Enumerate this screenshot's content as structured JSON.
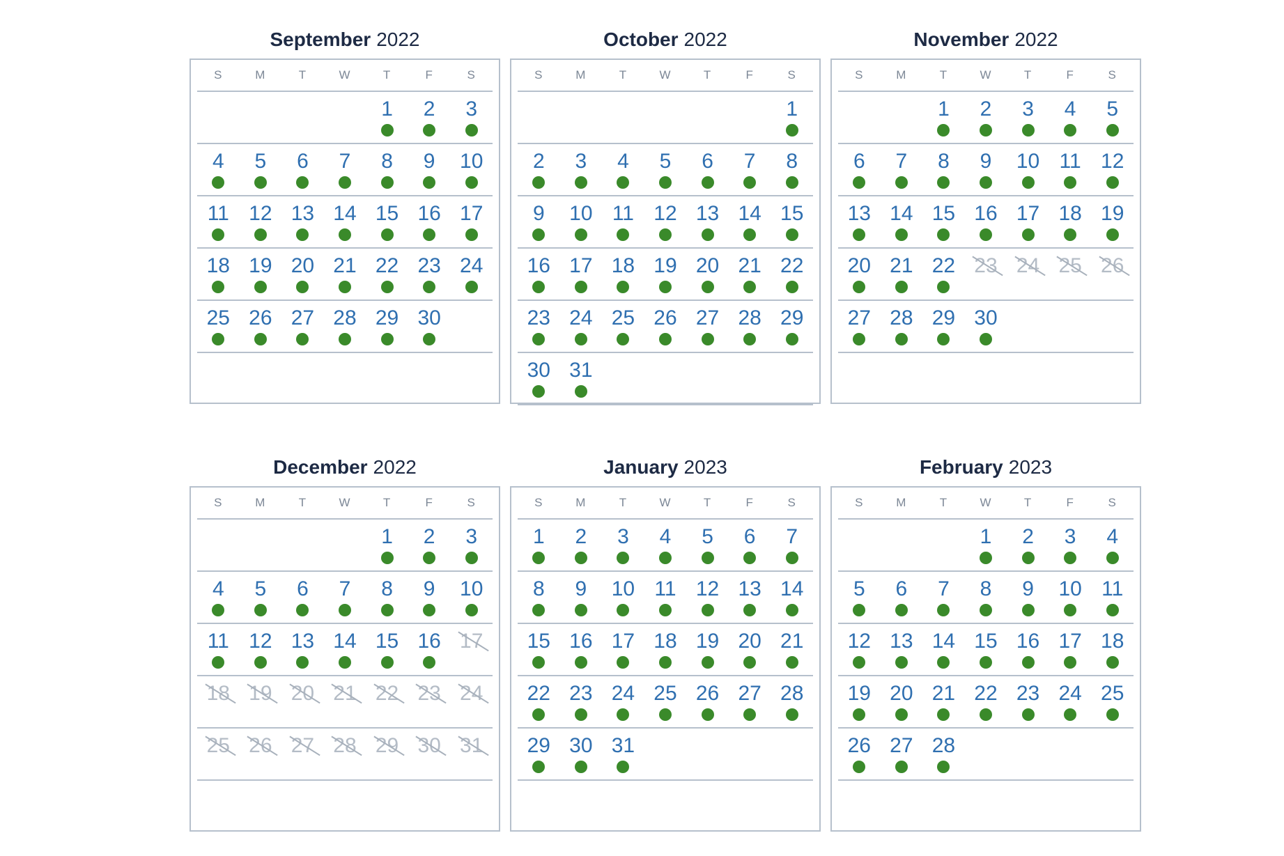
{
  "weekday_labels": [
    "S",
    "M",
    "T",
    "W",
    "T",
    "F",
    "S"
  ],
  "colors": {
    "title": "#1d2a44",
    "day_number": "#2f6fb0",
    "available_dot": "#3a8a2a",
    "unavailable_day": "#b4bcc6",
    "border": "#b6c0cc",
    "weekday_label": "#7c8796"
  },
  "months": [
    {
      "name": "September",
      "year": "2022",
      "weeks": [
        [
          null,
          null,
          null,
          null,
          {
            "d": "1",
            "avail": true
          },
          {
            "d": "2",
            "avail": true
          },
          {
            "d": "3",
            "avail": true
          }
        ],
        [
          {
            "d": "4",
            "avail": true
          },
          {
            "d": "5",
            "avail": true
          },
          {
            "d": "6",
            "avail": true
          },
          {
            "d": "7",
            "avail": true
          },
          {
            "d": "8",
            "avail": true
          },
          {
            "d": "9",
            "avail": true
          },
          {
            "d": "10",
            "avail": true
          }
        ],
        [
          {
            "d": "11",
            "avail": true
          },
          {
            "d": "12",
            "avail": true
          },
          {
            "d": "13",
            "avail": true
          },
          {
            "d": "14",
            "avail": true
          },
          {
            "d": "15",
            "avail": true
          },
          {
            "d": "16",
            "avail": true
          },
          {
            "d": "17",
            "avail": true
          }
        ],
        [
          {
            "d": "18",
            "avail": true
          },
          {
            "d": "19",
            "avail": true
          },
          {
            "d": "20",
            "avail": true
          },
          {
            "d": "21",
            "avail": true
          },
          {
            "d": "22",
            "avail": true
          },
          {
            "d": "23",
            "avail": true
          },
          {
            "d": "24",
            "avail": true
          }
        ],
        [
          {
            "d": "25",
            "avail": true
          },
          {
            "d": "26",
            "avail": true
          },
          {
            "d": "27",
            "avail": true
          },
          {
            "d": "28",
            "avail": true
          },
          {
            "d": "29",
            "avail": true
          },
          {
            "d": "30",
            "avail": true
          },
          null
        ]
      ]
    },
    {
      "name": "October",
      "year": "2022",
      "weeks": [
        [
          null,
          null,
          null,
          null,
          null,
          null,
          {
            "d": "1",
            "avail": true
          }
        ],
        [
          {
            "d": "2",
            "avail": true
          },
          {
            "d": "3",
            "avail": true
          },
          {
            "d": "4",
            "avail": true
          },
          {
            "d": "5",
            "avail": true
          },
          {
            "d": "6",
            "avail": true
          },
          {
            "d": "7",
            "avail": true
          },
          {
            "d": "8",
            "avail": true
          }
        ],
        [
          {
            "d": "9",
            "avail": true
          },
          {
            "d": "10",
            "avail": true
          },
          {
            "d": "11",
            "avail": true
          },
          {
            "d": "12",
            "avail": true
          },
          {
            "d": "13",
            "avail": true
          },
          {
            "d": "14",
            "avail": true
          },
          {
            "d": "15",
            "avail": true
          }
        ],
        [
          {
            "d": "16",
            "avail": true
          },
          {
            "d": "17",
            "avail": true
          },
          {
            "d": "18",
            "avail": true
          },
          {
            "d": "19",
            "avail": true
          },
          {
            "d": "20",
            "avail": true
          },
          {
            "d": "21",
            "avail": true
          },
          {
            "d": "22",
            "avail": true
          }
        ],
        [
          {
            "d": "23",
            "avail": true
          },
          {
            "d": "24",
            "avail": true
          },
          {
            "d": "25",
            "avail": true
          },
          {
            "d": "26",
            "avail": true
          },
          {
            "d": "27",
            "avail": true
          },
          {
            "d": "28",
            "avail": true
          },
          {
            "d": "29",
            "avail": true
          }
        ],
        [
          {
            "d": "30",
            "avail": true
          },
          {
            "d": "31",
            "avail": true
          },
          null,
          null,
          null,
          null,
          null
        ]
      ]
    },
    {
      "name": "November",
      "year": "2022",
      "weeks": [
        [
          null,
          null,
          {
            "d": "1",
            "avail": true
          },
          {
            "d": "2",
            "avail": true
          },
          {
            "d": "3",
            "avail": true
          },
          {
            "d": "4",
            "avail": true
          },
          {
            "d": "5",
            "avail": true
          }
        ],
        [
          {
            "d": "6",
            "avail": true
          },
          {
            "d": "7",
            "avail": true
          },
          {
            "d": "8",
            "avail": true
          },
          {
            "d": "9",
            "avail": true
          },
          {
            "d": "10",
            "avail": true
          },
          {
            "d": "11",
            "avail": true
          },
          {
            "d": "12",
            "avail": true
          }
        ],
        [
          {
            "d": "13",
            "avail": true
          },
          {
            "d": "14",
            "avail": true
          },
          {
            "d": "15",
            "avail": true
          },
          {
            "d": "16",
            "avail": true
          },
          {
            "d": "17",
            "avail": true
          },
          {
            "d": "18",
            "avail": true
          },
          {
            "d": "19",
            "avail": true
          }
        ],
        [
          {
            "d": "20",
            "avail": true
          },
          {
            "d": "21",
            "avail": true
          },
          {
            "d": "22",
            "avail": true
          },
          {
            "d": "23",
            "avail": false
          },
          {
            "d": "24",
            "avail": false
          },
          {
            "d": "25",
            "avail": false
          },
          {
            "d": "26",
            "avail": false
          }
        ],
        [
          {
            "d": "27",
            "avail": true
          },
          {
            "d": "28",
            "avail": true
          },
          {
            "d": "29",
            "avail": true
          },
          {
            "d": "30",
            "avail": true
          },
          null,
          null,
          null
        ]
      ]
    },
    {
      "name": "December",
      "year": "2022",
      "weeks": [
        [
          null,
          null,
          null,
          null,
          {
            "d": "1",
            "avail": true
          },
          {
            "d": "2",
            "avail": true
          },
          {
            "d": "3",
            "avail": true
          }
        ],
        [
          {
            "d": "4",
            "avail": true
          },
          {
            "d": "5",
            "avail": true
          },
          {
            "d": "6",
            "avail": true
          },
          {
            "d": "7",
            "avail": true
          },
          {
            "d": "8",
            "avail": true
          },
          {
            "d": "9",
            "avail": true
          },
          {
            "d": "10",
            "avail": true
          }
        ],
        [
          {
            "d": "11",
            "avail": true
          },
          {
            "d": "12",
            "avail": true
          },
          {
            "d": "13",
            "avail": true
          },
          {
            "d": "14",
            "avail": true
          },
          {
            "d": "15",
            "avail": true
          },
          {
            "d": "16",
            "avail": true
          },
          {
            "d": "17",
            "avail": false
          }
        ],
        [
          {
            "d": "18",
            "avail": false
          },
          {
            "d": "19",
            "avail": false
          },
          {
            "d": "20",
            "avail": false
          },
          {
            "d": "21",
            "avail": false
          },
          {
            "d": "22",
            "avail": false
          },
          {
            "d": "23",
            "avail": false
          },
          {
            "d": "24",
            "avail": false
          }
        ],
        [
          {
            "d": "25",
            "avail": false
          },
          {
            "d": "26",
            "avail": false
          },
          {
            "d": "27",
            "avail": false
          },
          {
            "d": "28",
            "avail": false
          },
          {
            "d": "29",
            "avail": false
          },
          {
            "d": "30",
            "avail": false
          },
          {
            "d": "31",
            "avail": false
          }
        ]
      ]
    },
    {
      "name": "January",
      "year": "2023",
      "weeks": [
        [
          {
            "d": "1",
            "avail": true
          },
          {
            "d": "2",
            "avail": true
          },
          {
            "d": "3",
            "avail": true
          },
          {
            "d": "4",
            "avail": true
          },
          {
            "d": "5",
            "avail": true
          },
          {
            "d": "6",
            "avail": true
          },
          {
            "d": "7",
            "avail": true
          }
        ],
        [
          {
            "d": "8",
            "avail": true
          },
          {
            "d": "9",
            "avail": true
          },
          {
            "d": "10",
            "avail": true
          },
          {
            "d": "11",
            "avail": true
          },
          {
            "d": "12",
            "avail": true
          },
          {
            "d": "13",
            "avail": true
          },
          {
            "d": "14",
            "avail": true
          }
        ],
        [
          {
            "d": "15",
            "avail": true
          },
          {
            "d": "16",
            "avail": true
          },
          {
            "d": "17",
            "avail": true
          },
          {
            "d": "18",
            "avail": true
          },
          {
            "d": "19",
            "avail": true
          },
          {
            "d": "20",
            "avail": true
          },
          {
            "d": "21",
            "avail": true
          }
        ],
        [
          {
            "d": "22",
            "avail": true
          },
          {
            "d": "23",
            "avail": true
          },
          {
            "d": "24",
            "avail": true
          },
          {
            "d": "25",
            "avail": true
          },
          {
            "d": "26",
            "avail": true
          },
          {
            "d": "27",
            "avail": true
          },
          {
            "d": "28",
            "avail": true
          }
        ],
        [
          {
            "d": "29",
            "avail": true
          },
          {
            "d": "30",
            "avail": true
          },
          {
            "d": "31",
            "avail": true
          },
          null,
          null,
          null,
          null
        ]
      ]
    },
    {
      "name": "February",
      "year": "2023",
      "weeks": [
        [
          null,
          null,
          null,
          {
            "d": "1",
            "avail": true
          },
          {
            "d": "2",
            "avail": true
          },
          {
            "d": "3",
            "avail": true
          },
          {
            "d": "4",
            "avail": true
          }
        ],
        [
          {
            "d": "5",
            "avail": true
          },
          {
            "d": "6",
            "avail": true
          },
          {
            "d": "7",
            "avail": true
          },
          {
            "d": "8",
            "avail": true
          },
          {
            "d": "9",
            "avail": true
          },
          {
            "d": "10",
            "avail": true
          },
          {
            "d": "11",
            "avail": true
          }
        ],
        [
          {
            "d": "12",
            "avail": true
          },
          {
            "d": "13",
            "avail": true
          },
          {
            "d": "14",
            "avail": true
          },
          {
            "d": "15",
            "avail": true
          },
          {
            "d": "16",
            "avail": true
          },
          {
            "d": "17",
            "avail": true
          },
          {
            "d": "18",
            "avail": true
          }
        ],
        [
          {
            "d": "19",
            "avail": true
          },
          {
            "d": "20",
            "avail": true
          },
          {
            "d": "21",
            "avail": true
          },
          {
            "d": "22",
            "avail": true
          },
          {
            "d": "23",
            "avail": true
          },
          {
            "d": "24",
            "avail": true
          },
          {
            "d": "25",
            "avail": true
          }
        ],
        [
          {
            "d": "26",
            "avail": true
          },
          {
            "d": "27",
            "avail": true
          },
          {
            "d": "28",
            "avail": true
          },
          null,
          null,
          null,
          null
        ]
      ]
    }
  ]
}
